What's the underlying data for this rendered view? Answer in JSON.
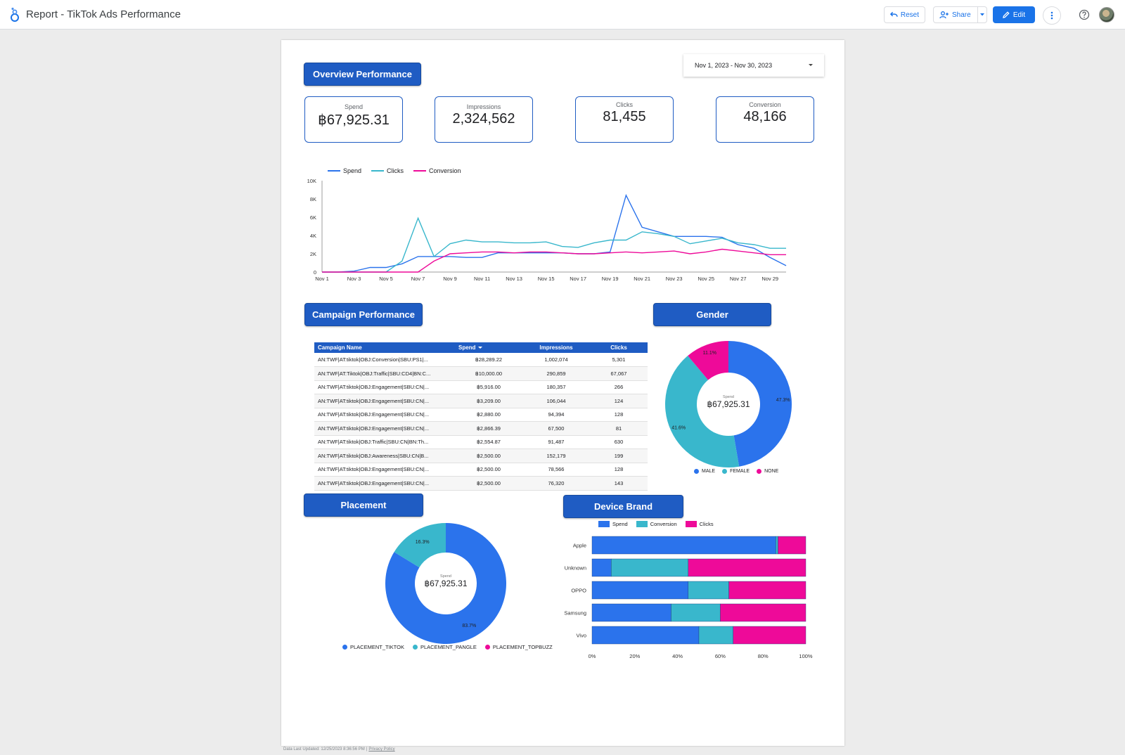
{
  "app": {
    "title": "Report - TikTok Ads Performance",
    "reset_label": "Reset",
    "share_label": "Share",
    "edit_label": "Edit"
  },
  "colors": {
    "header_blue": "#1f5cc3",
    "spend": "#2b73ec",
    "clicks": "#39b7cc",
    "conversion": "#ee0a99",
    "primary_button": "#1a73e8"
  },
  "overview": {
    "title": "Overview Performance",
    "date_range": "Nov 1, 2023 - Nov 30, 2023",
    "kpis": [
      {
        "label": "Spend",
        "value": "฿67,925.31"
      },
      {
        "label": "Impressions",
        "value": "2,324,562"
      },
      {
        "label": "Clicks",
        "value": "81,455"
      },
      {
        "label": "Conversion",
        "value": "48,166"
      }
    ]
  },
  "campaign": {
    "title": "Campaign Performance",
    "columns": [
      "Campaign Name",
      "Spend",
      "Impressions",
      "Clicks"
    ],
    "rows": [
      [
        "AN:TWF|AT:tiktok|OBJ:Conversion|SBU:PS1|...",
        "฿28,289.22",
        "1,002,074",
        "5,301"
      ],
      [
        "AN:TWF|AT:Tiktok|OBJ:Traffic|SBU:CD4|BN:C...",
        "฿10,000.00",
        "290,859",
        "67,067"
      ],
      [
        "AN:TWF|AT:tiktok|OBJ:Engagement|SBU:CN|...",
        "฿5,916.00",
        "180,357",
        "266"
      ],
      [
        "AN:TWF|AT:tiktok|OBJ:Engagement|SBU:CN|...",
        "฿3,209.00",
        "106,044",
        "124"
      ],
      [
        "AN:TWF|AT:tiktok|OBJ:Engagement|SBU:CN|...",
        "฿2,880.00",
        "94,394",
        "128"
      ],
      [
        "AN:TWF|AT:tiktok|OBJ:Engagement|SBU:CN|...",
        "฿2,866.39",
        "67,500",
        "81"
      ],
      [
        "AN:TWF|AT:tiktok|OBJ:Traffic|SBU:CN|BN:Th...",
        "฿2,554.87",
        "91,487",
        "630"
      ],
      [
        "AN:TWF|AT:tiktok|OBJ:Awareness|SBU:CN|B...",
        "฿2,500.00",
        "152,179",
        "199"
      ],
      [
        "AN:TWF|AT:tiktok|OBJ:Engagement|SBU:CN|...",
        "฿2,500.00",
        "78,566",
        "128"
      ],
      [
        "AN:TWF|AT:tiktok|OBJ:Engagement|SBU:CN|...",
        "฿2,500.00",
        "76,320",
        "143"
      ]
    ]
  },
  "gender": {
    "title": "Gender",
    "center_label": "Spend",
    "center_value": "฿67,925.31"
  },
  "placement": {
    "title": "Placement",
    "center_label": "Spend",
    "center_value": "฿67,925.31"
  },
  "device": {
    "title": "Device Brand"
  },
  "footer": {
    "updated": "Data Last Updated: 12/25/2023 8:36:56 PM",
    "privacy": "Privacy Policy"
  },
  "chart_data": [
    {
      "type": "line",
      "title": "",
      "x": [
        "Nov 1",
        "Nov 2",
        "Nov 3",
        "Nov 4",
        "Nov 5",
        "Nov 6",
        "Nov 7",
        "Nov 8",
        "Nov 9",
        "Nov 10",
        "Nov 11",
        "Nov 12",
        "Nov 13",
        "Nov 14",
        "Nov 15",
        "Nov 16",
        "Nov 17",
        "Nov 18",
        "Nov 19",
        "Nov 20",
        "Nov 21",
        "Nov 22",
        "Nov 23",
        "Nov 24",
        "Nov 25",
        "Nov 26",
        "Nov 27",
        "Nov 28",
        "Nov 29",
        "Nov 30"
      ],
      "x_tick_labels": [
        "Nov 1",
        "Nov 3",
        "Nov 5",
        "Nov 7",
        "Nov 9",
        "Nov 11",
        "Nov 13",
        "Nov 15",
        "Nov 17",
        "Nov 19",
        "Nov 21",
        "Nov 23",
        "Nov 25",
        "Nov 27",
        "Nov 29"
      ],
      "y_ticks": [
        "0",
        "2K",
        "4K",
        "6K",
        "8K",
        "10K"
      ],
      "ylim": [
        0,
        10000
      ],
      "legend_position": "top-left",
      "series": [
        {
          "name": "Spend",
          "color": "#2b73ec",
          "values": [
            0,
            0,
            100,
            500,
            500,
            900,
            1700,
            1700,
            1700,
            1600,
            1600,
            2100,
            2100,
            2100,
            2100,
            2100,
            2000,
            2000,
            2200,
            8400,
            4900,
            4400,
            3900,
            3900,
            3900,
            3800,
            3000,
            2600,
            1600,
            700
          ]
        },
        {
          "name": "Clicks",
          "color": "#39b7cc",
          "values": [
            0,
            0,
            0,
            0,
            0,
            1200,
            5900,
            1700,
            3100,
            3500,
            3300,
            3300,
            3200,
            3200,
            3300,
            2800,
            2700,
            3200,
            3500,
            3500,
            4400,
            4200,
            3900,
            3100,
            3400,
            3700,
            3200,
            3000,
            2600,
            2600
          ]
        },
        {
          "name": "Conversion",
          "color": "#ee0a99",
          "values": [
            0,
            0,
            0,
            0,
            0,
            0,
            0,
            1200,
            2000,
            2100,
            2200,
            2200,
            2100,
            2200,
            2200,
            2100,
            2000,
            2000,
            2100,
            2200,
            2100,
            2200,
            2300,
            2000,
            2200,
            2500,
            2300,
            2100,
            1900,
            1900
          ]
        }
      ]
    },
    {
      "type": "pie",
      "title": "Gender",
      "labels": [
        "MALE",
        "FEMALE",
        "NONE"
      ],
      "values": [
        47.3,
        41.6,
        11.1
      ],
      "value_labels": [
        "47.3%",
        "41.6%",
        "11.1%"
      ],
      "colors": [
        "#2b73ec",
        "#39b7cc",
        "#ee0a99"
      ],
      "legend_position": "bottom"
    },
    {
      "type": "pie",
      "title": "Placement",
      "labels": [
        "PLACEMENT_TIKTOK",
        "PLACEMENT_PANGLE",
        "PLACEMENT_TOPBUZZ"
      ],
      "values": [
        83.7,
        16.3,
        0
      ],
      "value_labels": [
        "83.7%",
        "16.3%",
        ""
      ],
      "colors": [
        "#2b73ec",
        "#39b7cc",
        "#ee0a99"
      ],
      "legend_position": "bottom"
    },
    {
      "type": "bar",
      "orientation": "horizontal",
      "stacked": "percent",
      "title": "Device Brand",
      "categories": [
        "Apple",
        "Unknown",
        "OPPO",
        "Samsung",
        "Vivo"
      ],
      "x_ticks": [
        "0%",
        "20%",
        "40%",
        "60%",
        "80%",
        "100%"
      ],
      "legend_position": "top",
      "series": [
        {
          "name": "Spend",
          "color": "#2b73ec",
          "values": [
            86,
            9,
            45,
            37,
            50
          ]
        },
        {
          "name": "Conversion",
          "color": "#39b7cc",
          "values": [
            1,
            36,
            19,
            23,
            16
          ]
        },
        {
          "name": "Clicks",
          "color": "#ee0a99",
          "values": [
            13,
            55,
            36,
            40,
            34
          ]
        }
      ]
    }
  ]
}
